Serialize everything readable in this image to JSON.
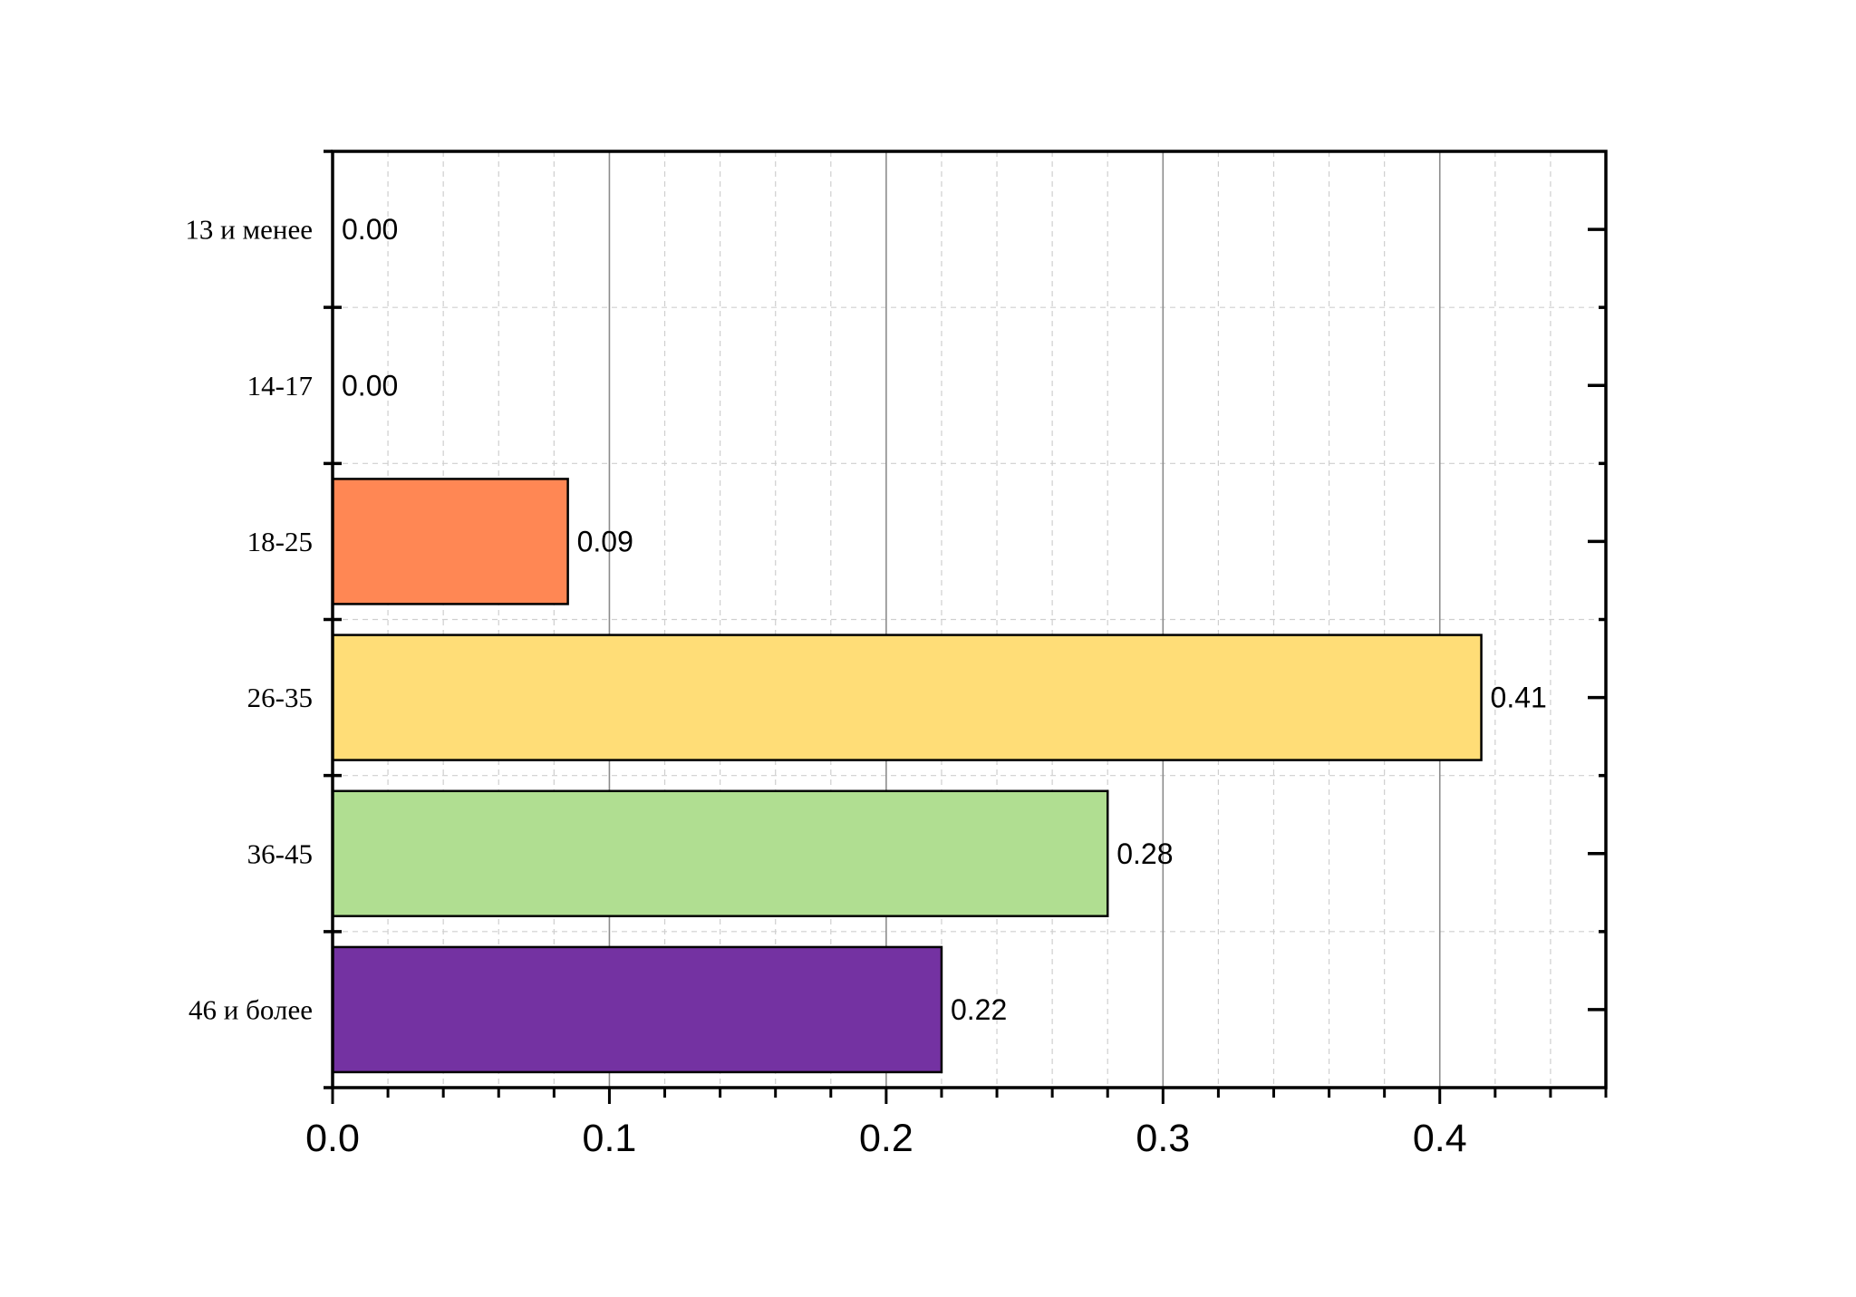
{
  "chart_data": {
    "type": "bar",
    "orientation": "horizontal",
    "categories": [
      "13 и менее",
      "14-17",
      "18-25",
      "26-35",
      "36-45",
      "46 и более"
    ],
    "values": [
      0.0,
      0.0,
      0.085,
      0.415,
      0.28,
      0.22
    ],
    "value_labels": [
      "0.00",
      "0.00",
      "0.09",
      "0.41",
      "0.28",
      "0.22"
    ],
    "bar_colors": [
      "#ffffff",
      "#ffffff",
      "#ff8754",
      "#ffdd77",
      "#b0de91",
      "#7432a2"
    ],
    "x_ticks": [
      0.0,
      0.1,
      0.2,
      0.3,
      0.4
    ],
    "x_tick_labels": [
      "0.0",
      "0.1",
      "0.2",
      "0.3",
      "0.4"
    ],
    "xlim": [
      0,
      0.46
    ],
    "title": "",
    "xlabel": "",
    "ylabel": "",
    "grid": true,
    "legend": false
  }
}
